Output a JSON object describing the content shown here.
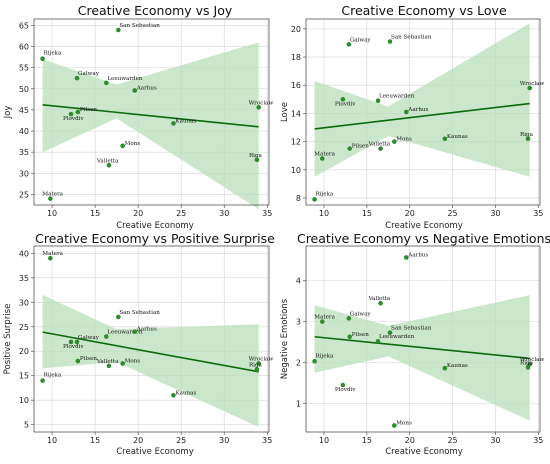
{
  "colors": {
    "point": "#2e8b2e",
    "line": "#0b6b0b",
    "band": "#b9dfb9",
    "grid": "#d4d4d4",
    "axis": "#555555"
  },
  "chart_data": [
    {
      "type": "scatter",
      "title": "Creative Economy vs Joy",
      "xlabel": "Creative Economy",
      "ylabel": "Joy",
      "xlim": [
        7.9,
        35.2
      ],
      "ylim": [
        22.5,
        66.5
      ],
      "xticks": [
        10,
        15,
        20,
        25,
        30,
        35
      ],
      "yticks": [
        25,
        30,
        35,
        40,
        45,
        50,
        55,
        60,
        65
      ],
      "grid": true,
      "points": [
        {
          "label": "Rijeka",
          "x": 8.9,
          "y": 57.1
        },
        {
          "label": "Matera",
          "x": 9.8,
          "y": 24.0
        },
        {
          "label": "Galway",
          "x": 12.9,
          "y": 52.5
        },
        {
          "label": "Pilsen",
          "x": 13.0,
          "y": 44.5
        },
        {
          "label": "Plovdiv",
          "x": 12.2,
          "y": 44.0
        },
        {
          "label": "Leeuwarden",
          "x": 16.3,
          "y": 51.4
        },
        {
          "label": "Valletta",
          "x": 16.6,
          "y": 31.9
        },
        {
          "label": "San Sebastian",
          "x": 17.7,
          "y": 63.9
        },
        {
          "label": "Mons",
          "x": 18.2,
          "y": 36.5
        },
        {
          "label": "Aarhus",
          "x": 19.6,
          "y": 49.6
        },
        {
          "label": "Kaunas",
          "x": 24.1,
          "y": 41.8
        },
        {
          "label": "Wroclaw",
          "x": 34.0,
          "y": 45.6
        },
        {
          "label": "Riga",
          "x": 33.8,
          "y": 33.2
        }
      ],
      "trend": {
        "x": [
          8.9,
          34.0
        ],
        "y": [
          46.2,
          41.0
        ]
      },
      "band": {
        "x": [
          8.9,
          17.5,
          34.0
        ],
        "upper": [
          57.0,
          51.0,
          61.0
        ],
        "lower": [
          35.0,
          43.0,
          21.5
        ]
      }
    },
    {
      "type": "scatter",
      "title": "Creative Economy vs Love",
      "xlabel": "Creative Economy",
      "ylabel": "Love",
      "xlim": [
        7.9,
        35.2
      ],
      "ylim": [
        7.5,
        20.7
      ],
      "xticks": [
        10,
        15,
        20,
        25,
        30,
        35
      ],
      "yticks": [
        8,
        10,
        12,
        14,
        16,
        18,
        20
      ],
      "grid": true,
      "points": [
        {
          "label": "Rijeka",
          "x": 8.9,
          "y": 7.9
        },
        {
          "label": "Matera",
          "x": 9.8,
          "y": 10.8
        },
        {
          "label": "Galway",
          "x": 12.9,
          "y": 18.9
        },
        {
          "label": "Pilsen",
          "x": 13.0,
          "y": 11.5
        },
        {
          "label": "Plovdiv",
          "x": 12.2,
          "y": 15.0
        },
        {
          "label": "Leeuwarden",
          "x": 16.3,
          "y": 14.9
        },
        {
          "label": "Valletta",
          "x": 16.6,
          "y": 11.5
        },
        {
          "label": "San Sebastian",
          "x": 17.7,
          "y": 19.1
        },
        {
          "label": "Mons",
          "x": 18.2,
          "y": 12.0
        },
        {
          "label": "Aarhus",
          "x": 19.6,
          "y": 14.1
        },
        {
          "label": "Kaunas",
          "x": 24.1,
          "y": 12.2
        },
        {
          "label": "Wroclaw",
          "x": 34.0,
          "y": 15.8
        },
        {
          "label": "Riga",
          "x": 33.8,
          "y": 12.2
        }
      ],
      "trend": {
        "x": [
          8.9,
          34.0
        ],
        "y": [
          12.9,
          14.7
        ]
      },
      "band": {
        "x": [
          8.9,
          17.5,
          34.0
        ],
        "upper": [
          16.3,
          14.5,
          20.4
        ],
        "lower": [
          9.5,
          12.4,
          9.5
        ]
      }
    },
    {
      "type": "scatter",
      "title": "Creative Economy vs Positive Surprise",
      "xlabel": "Creative Economy",
      "ylabel": "Positive Surprise",
      "xlim": [
        7.9,
        35.2
      ],
      "ylim": [
        3.5,
        41.5
      ],
      "xticks": [
        10,
        15,
        20,
        25,
        30,
        35
      ],
      "yticks": [
        5,
        10,
        15,
        20,
        25,
        30,
        35,
        40
      ],
      "grid": true,
      "points": [
        {
          "label": "Rijeka",
          "x": 8.9,
          "y": 14.0
        },
        {
          "label": "Matera",
          "x": 9.8,
          "y": 39.0
        },
        {
          "label": "Galway",
          "x": 12.9,
          "y": 21.9
        },
        {
          "label": "Pilsen",
          "x": 13.0,
          "y": 18.0
        },
        {
          "label": "Plovdiv",
          "x": 12.2,
          "y": 21.9
        },
        {
          "label": "Leeuwarden",
          "x": 16.3,
          "y": 23.0
        },
        {
          "label": "Valletta",
          "x": 16.6,
          "y": 17.0
        },
        {
          "label": "San Sebastian",
          "x": 17.7,
          "y": 27.0
        },
        {
          "label": "Mons",
          "x": 18.2,
          "y": 17.5
        },
        {
          "label": "Aarhus",
          "x": 19.6,
          "y": 24.0
        },
        {
          "label": "Kaunas",
          "x": 24.1,
          "y": 11.0
        },
        {
          "label": "Wroclaw",
          "x": 34.0,
          "y": 17.5
        },
        {
          "label": "Riga",
          "x": 33.8,
          "y": 16.3
        }
      ],
      "trend": {
        "x": [
          8.9,
          34.0
        ],
        "y": [
          23.9,
          15.8
        ]
      },
      "band": {
        "x": [
          8.9,
          17.5,
          34.0
        ],
        "upper": [
          31.5,
          24.5,
          25.5
        ],
        "lower": [
          16.5,
          17.8,
          4.5
        ]
      }
    },
    {
      "type": "scatter",
      "title": "Creative Economy vs Negative Emotions",
      "xlabel": "Creative Economy",
      "ylabel": "Negative Emotions",
      "xlim": [
        7.9,
        35.2
      ],
      "ylim": [
        0.3,
        4.85
      ],
      "xticks": [
        10,
        15,
        20,
        25,
        30,
        35
      ],
      "yticks": [
        1,
        2,
        3,
        4
      ],
      "grid": true,
      "points": [
        {
          "label": "Rijeka",
          "x": 8.9,
          "y": 2.03
        },
        {
          "label": "Matera",
          "x": 9.8,
          "y": 3.0
        },
        {
          "label": "Galway",
          "x": 12.9,
          "y": 3.08
        },
        {
          "label": "Pilsen",
          "x": 13.0,
          "y": 2.63
        },
        {
          "label": "Plovdiv",
          "x": 12.2,
          "y": 1.45
        },
        {
          "label": "Leeuwarden",
          "x": 16.3,
          "y": 2.52
        },
        {
          "label": "Valletta",
          "x": 16.6,
          "y": 3.45
        },
        {
          "label": "San Sebastian",
          "x": 17.7,
          "y": 2.73
        },
        {
          "label": "Mons",
          "x": 18.2,
          "y": 0.46
        },
        {
          "label": "Aarhus",
          "x": 19.6,
          "y": 4.57
        },
        {
          "label": "Kaunas",
          "x": 24.1,
          "y": 1.86
        },
        {
          "label": "Wroclaw",
          "x": 34.0,
          "y": 1.96
        },
        {
          "label": "Riga",
          "x": 33.8,
          "y": 1.88
        }
      ],
      "trend": {
        "x": [
          8.9,
          34.0
        ],
        "y": [
          2.63,
          2.1
        ]
      },
      "band": {
        "x": [
          8.9,
          17.5,
          34.0
        ],
        "upper": [
          3.4,
          2.9,
          3.65
        ],
        "lower": [
          1.75,
          2.15,
          0.58
        ]
      }
    }
  ]
}
